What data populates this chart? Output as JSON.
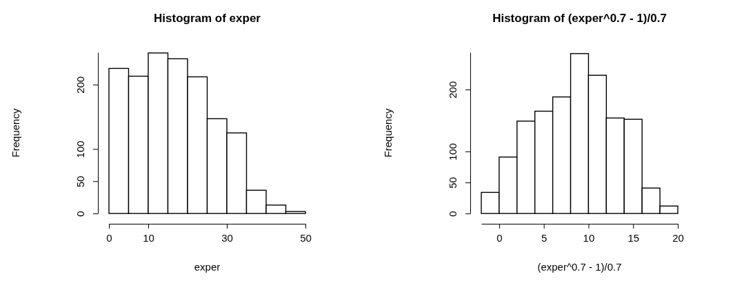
{
  "chart_data": [
    {
      "type": "histogram",
      "title": "Histogram of exper",
      "xlabel": "exper",
      "ylabel": "Frequency",
      "color": "#ffffff",
      "bins": [
        0,
        5,
        10,
        15,
        20,
        25,
        30,
        35,
        40,
        45,
        50
      ],
      "values": [
        225,
        213,
        249,
        240,
        212,
        147,
        125,
        36,
        13,
        3
      ],
      "xlim": [
        0,
        50
      ],
      "xticks": [
        0,
        10,
        30,
        50
      ],
      "ylim": [
        0,
        250
      ],
      "yticks": [
        0,
        50,
        100,
        200
      ]
    },
    {
      "type": "histogram",
      "title": "Histogram of (exper^0.7 - 1)/0.7",
      "xlabel": "(exper^0.7 - 1)/0.7",
      "ylabel": "Frequency",
      "color": "#ffffff",
      "bins": [
        -2,
        0,
        2,
        4,
        6,
        8,
        10,
        12,
        14,
        16,
        18,
        20
      ],
      "values": [
        34,
        91,
        149,
        165,
        188,
        258,
        223,
        154,
        152,
        41,
        12
      ],
      "xlim": [
        -2,
        20
      ],
      "xticks": [
        0,
        5,
        10,
        15,
        20
      ],
      "ylim": [
        0,
        260
      ],
      "yticks": [
        0,
        50,
        100,
        200
      ]
    }
  ]
}
